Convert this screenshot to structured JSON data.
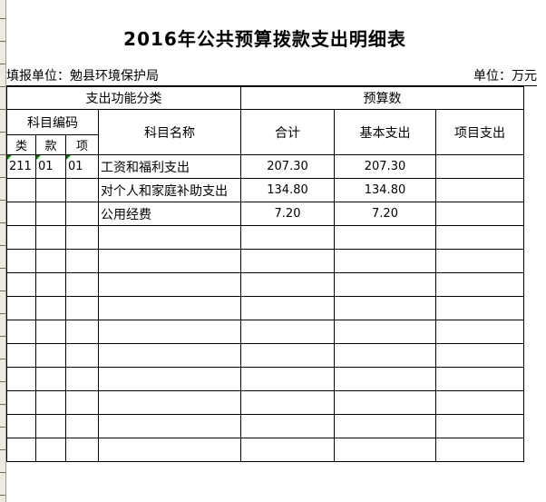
{
  "page": {
    "title": "2016年公共预算拨款支出明细表",
    "reporting_unit": "填报单位：勉县环境保护局",
    "unit_note": "单位：万元"
  },
  "table": {
    "headers": {
      "function_class_group": "支出功能分类",
      "budget_group": "预算数",
      "subject_code_group": "科目编码",
      "subject_name": "科目名称",
      "total": "合计",
      "basic_expense": "基本支出",
      "project_expense": "项目支出",
      "code_class": "类",
      "code_section": "款",
      "code_item": "项"
    },
    "rows": [
      {
        "code_class": "211",
        "code_section": "01",
        "code_item": "01",
        "subject_name": "工资和福利支出",
        "total": "207.30",
        "basic": "207.30",
        "project": "",
        "flagged_cells": [
          "code_class",
          "code_section",
          "code_item"
        ]
      },
      {
        "code_class": "",
        "code_section": "",
        "code_item": "",
        "subject_name": "对个人和家庭补助支出",
        "total": "134.80",
        "basic": "134.80",
        "project": ""
      },
      {
        "code_class": "",
        "code_section": "",
        "code_item": "",
        "subject_name": "公用经费",
        "total": "7.20",
        "basic": "7.20",
        "project": ""
      }
    ],
    "empty_row_count": 10
  },
  "colors": {
    "grid_border": "#000000",
    "page_background": "#ffffff",
    "outside_margin_background": "#edeae0",
    "margin_gridline": "#6f6f60",
    "error_flag_green": "#008000"
  }
}
